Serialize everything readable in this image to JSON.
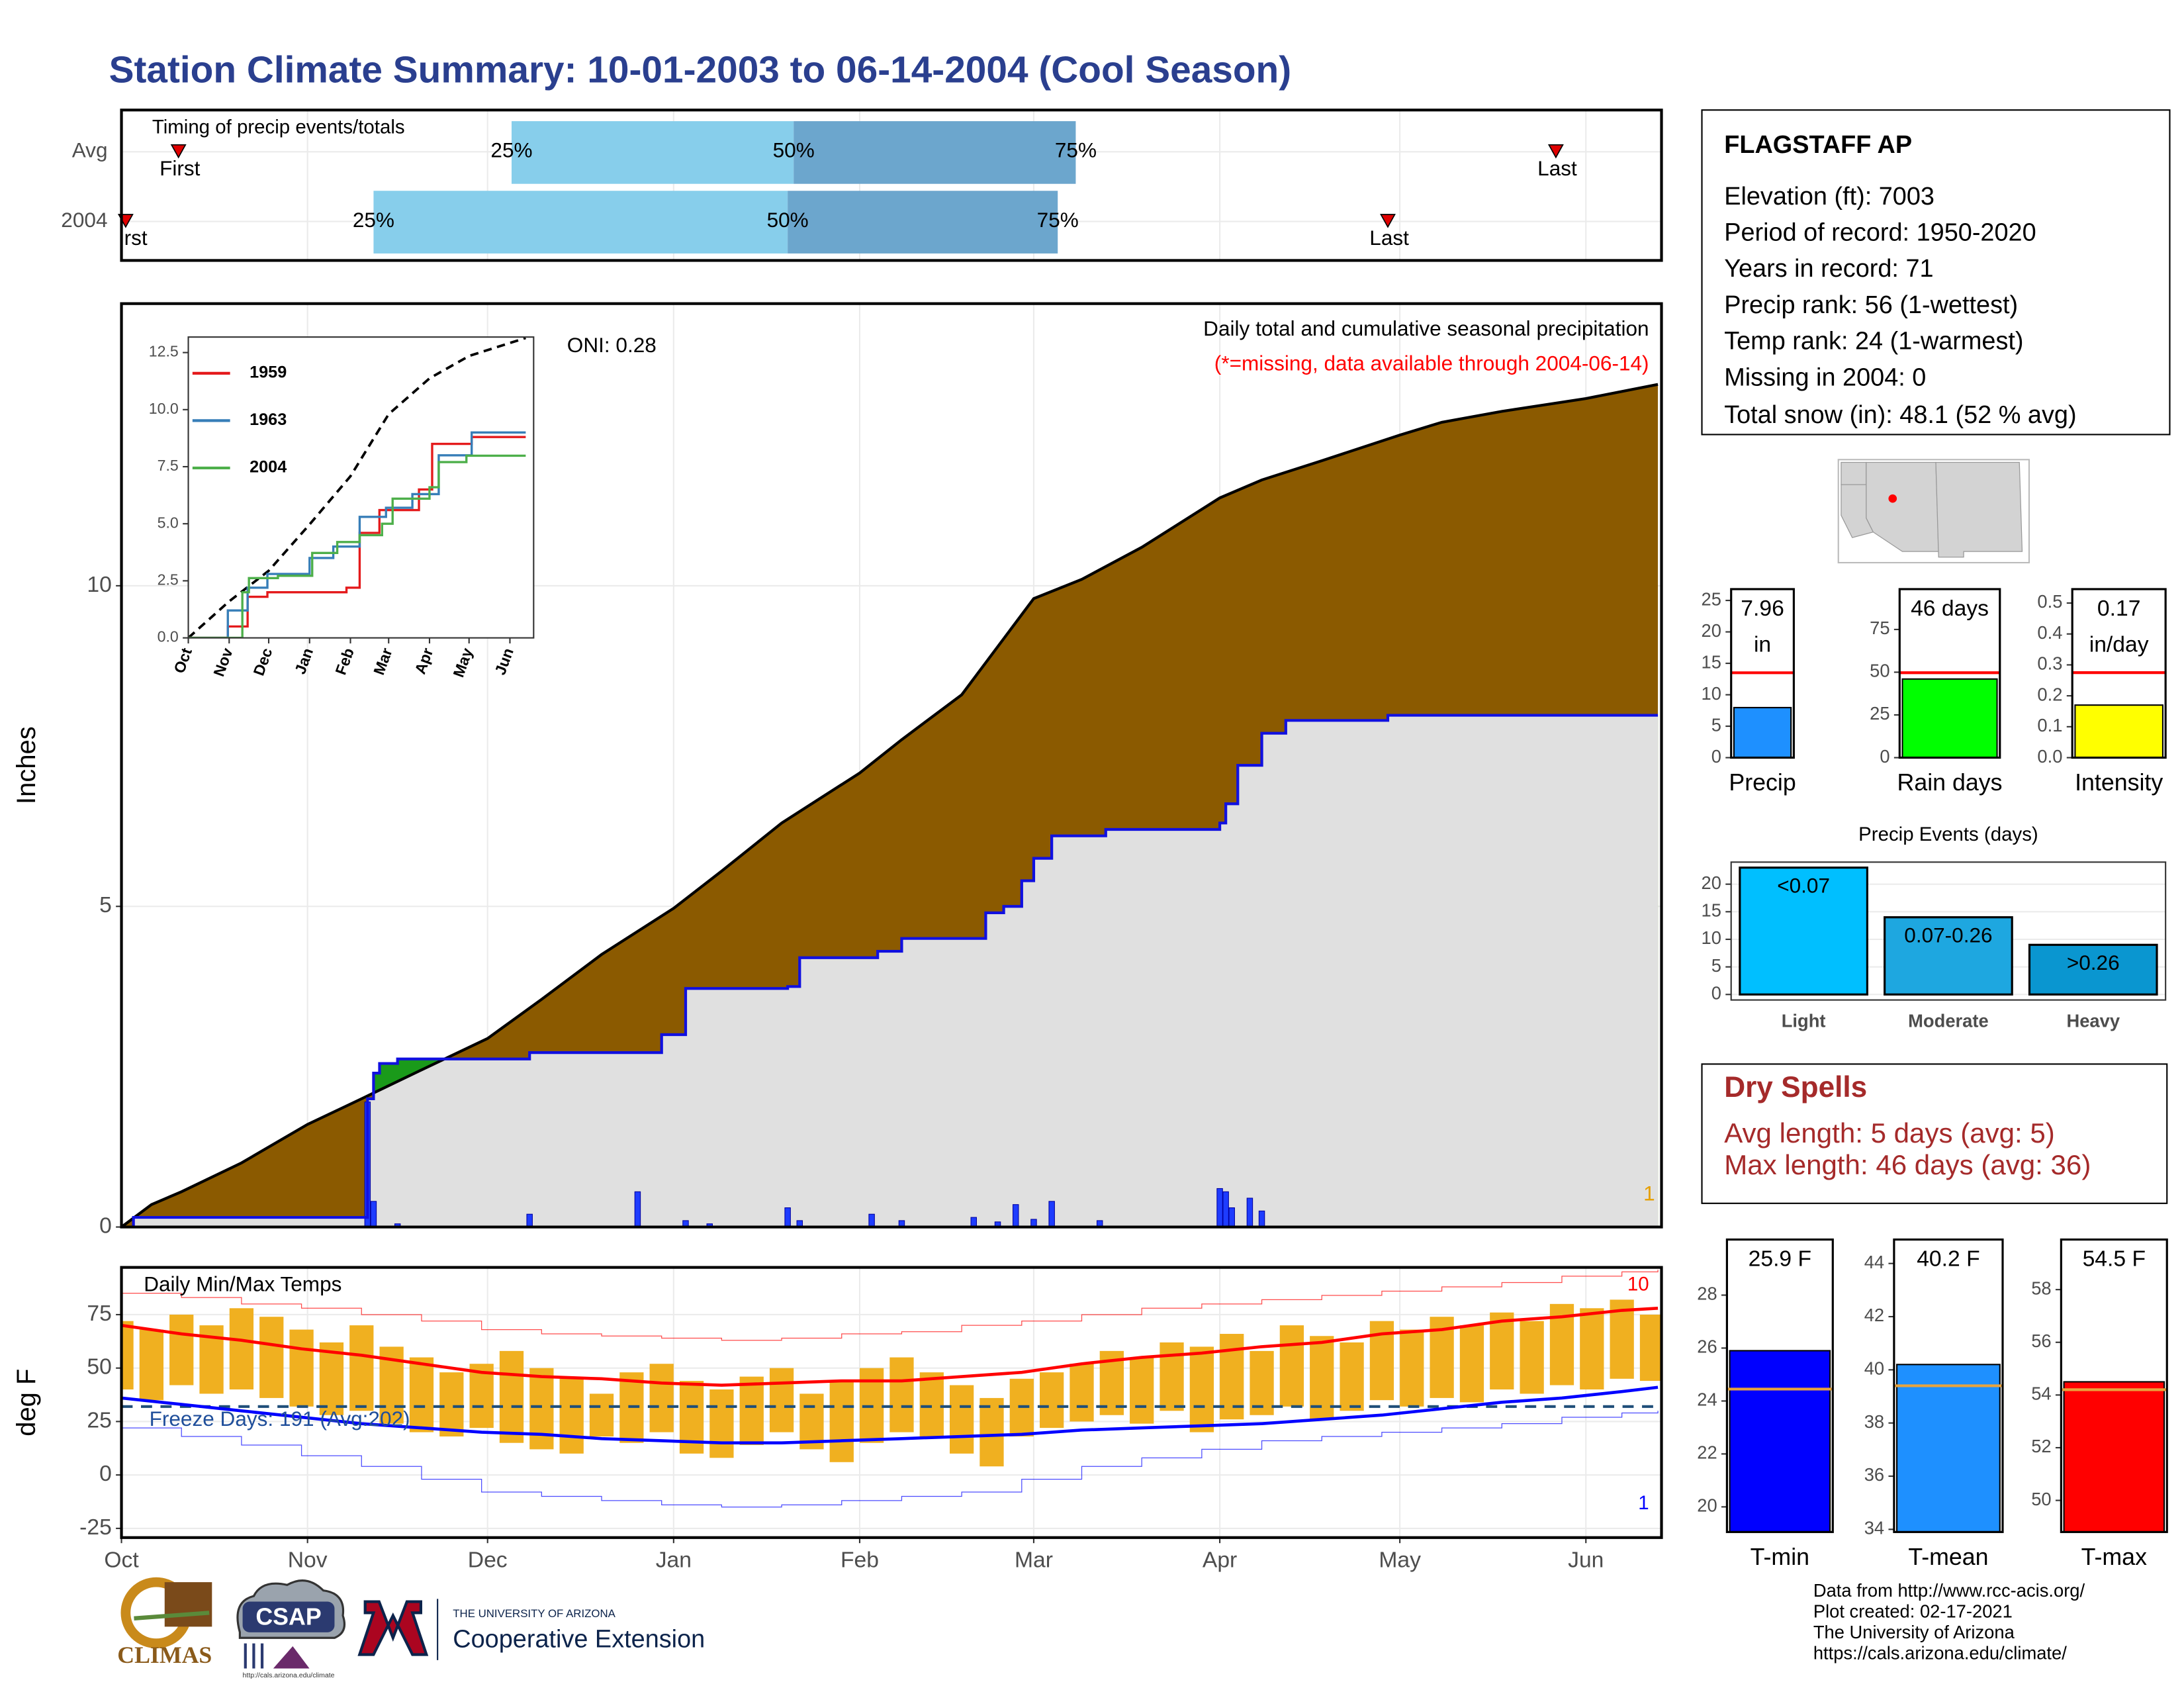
{
  "title": "Station Climate Summary: 10-01-2003 to 06-14-2004 (Cool Season)",
  "chart_data": [
    {
      "type": "timing",
      "title": "Timing of precip events/totals",
      "categories": [
        "Avg",
        "2004"
      ],
      "first": [
        9.5,
        0.7
      ],
      "q25": [
        65,
        42
      ],
      "q50": [
        112,
        111
      ],
      "q75": [
        159,
        156
      ],
      "last": [
        239,
        211
      ],
      "first_label": "First",
      "last_label": "Last",
      "quantile_labels": [
        "25%",
        "50%",
        "75%"
      ],
      "colors": [
        "#87CEEB",
        "#6CA6CD"
      ],
      "marker_color": "#e00000",
      "xlim": [
        0,
        256.6
      ],
      "xticks": [
        0,
        31,
        61,
        92,
        123,
        152,
        183,
        213,
        244
      ],
      "grid": true
    },
    {
      "type": "cumulative",
      "title": "Daily total and cumulative seasonal precipitation",
      "subtitle": "(*=missing, data available through 2004-06-14)",
      "annotation": "ONI: 0.28",
      "corner_count": 1,
      "ylabel": "Inches",
      "series": [
        {
          "color": "#000000",
          "step": false,
          "x": [
            0,
            5,
            10,
            20,
            31,
            40,
            50,
            61,
            70,
            80,
            92,
            100,
            110,
            123,
            130,
            140,
            152,
            160,
            170,
            183,
            190,
            200,
            213,
            220,
            230,
            244,
            256
          ],
          "values": [
            0,
            0.35,
            0.55,
            1.0,
            1.6,
            2.0,
            2.45,
            2.94,
            3.55,
            4.25,
            4.97,
            5.55,
            6.3,
            7.08,
            7.6,
            8.3,
            9.8,
            10.1,
            10.6,
            11.37,
            11.65,
            11.95,
            12.35,
            12.55,
            12.72,
            12.92,
            13.14
          ]
        },
        {
          "color": "#1010e0",
          "step": true,
          "x": [
            0,
            2,
            41,
            42,
            43,
            46,
            61,
            68,
            90,
            94,
            111,
            113,
            126,
            130,
            144,
            147,
            150,
            152,
            155,
            164,
            183,
            184,
            186,
            190,
            194,
            200,
            211,
            256
          ],
          "values": [
            0,
            0.15,
            2.0,
            2.4,
            2.55,
            2.62,
            2.62,
            2.72,
            3.0,
            3.72,
            3.75,
            4.2,
            4.3,
            4.5,
            4.9,
            5.0,
            5.4,
            5.75,
            6.1,
            6.2,
            6.3,
            6.6,
            7.2,
            7.7,
            7.9,
            7.9,
            7.98,
            7.98
          ]
        }
      ],
      "fill_below": "#8B5A00",
      "fill_above": "#1A9A1A",
      "fill_base": "#E0E0E0",
      "daily": {
        "color": "#1E3CFF",
        "x": [
          41,
          42,
          46,
          68,
          86,
          94,
          98,
          111,
          113,
          125,
          130,
          142,
          146,
          149,
          152,
          155,
          163,
          183,
          184,
          185,
          188,
          190
        ],
        "values": [
          1.95,
          0.4,
          0.05,
          0.2,
          0.55,
          0.1,
          0.05,
          0.3,
          0.1,
          0.2,
          0.1,
          0.15,
          0.08,
          0.35,
          0.12,
          0.4,
          0.1,
          0.6,
          0.55,
          0.3,
          0.45,
          0.25
        ]
      },
      "xlim": [
        0,
        256.6
      ],
      "xticks": [
        0,
        31,
        61,
        92,
        123,
        152,
        183,
        213,
        244
      ],
      "ylim": [
        0,
        14.4
      ],
      "yticks": [
        0,
        5,
        10
      ],
      "grid": true
    },
    {
      "type": "line",
      "series": [
        {
          "color": "#000000",
          "dash": true,
          "x": [
            0,
            31,
            61,
            92,
            123,
            152,
            183,
            213,
            244,
            256
          ],
          "values": [
            0,
            1.6,
            2.94,
            4.97,
            7.08,
            9.8,
            11.37,
            12.35,
            12.92,
            13.14
          ]
        },
        {
          "name": "1959",
          "color": "#e41a1c",
          "dash": false,
          "x": [
            0,
            30,
            45,
            60,
            90,
            120,
            130,
            140,
            145,
            165,
            175,
            185,
            215,
            256
          ],
          "values": [
            0,
            0.5,
            1.8,
            2.0,
            2.0,
            2.2,
            4.6,
            4.6,
            5.6,
            5.6,
            6.5,
            8.5,
            8.8,
            8.8
          ]
        },
        {
          "name": "1963",
          "color": "#377eb8",
          "dash": false,
          "x": [
            0,
            30,
            45,
            60,
            92,
            110,
            130,
            150,
            170,
            190,
            215,
            256
          ],
          "values": [
            0,
            1.2,
            2.2,
            2.8,
            3.5,
            4.0,
            5.3,
            5.7,
            6.3,
            8.0,
            9.0,
            9.0
          ]
        },
        {
          "name": "2004",
          "color": "#4daf4a",
          "dash": false,
          "x": [
            0,
            41,
            46,
            68,
            94,
            113,
            130,
            147,
            155,
            183,
            190,
            211,
            256
          ],
          "values": [
            0,
            2.0,
            2.62,
            2.72,
            3.72,
            4.2,
            4.5,
            5.0,
            6.1,
            6.6,
            7.7,
            7.98,
            7.98
          ]
        }
      ],
      "xlim": [
        0,
        262
      ],
      "xticks": [
        {
          "value": 0,
          "label": "Oct"
        },
        {
          "value": 31,
          "label": "Nov"
        },
        {
          "value": 61,
          "label": "Dec"
        },
        {
          "value": 92,
          "label": "Jan"
        },
        {
          "value": 123,
          "label": "Feb"
        },
        {
          "value": 152,
          "label": "Mar"
        },
        {
          "value": 183,
          "label": "Apr"
        },
        {
          "value": 213,
          "label": "May"
        },
        {
          "value": 244,
          "label": "Jun"
        }
      ],
      "ylim": [
        0,
        13.18
      ],
      "yticks": [
        {
          "value": 0,
          "label": "0.0"
        },
        2.5,
        {
          "value": 5,
          "label": "5.0"
        },
        7.5,
        {
          "value": 10,
          "label": "10.0"
        },
        12.5
      ],
      "grid": false
    },
    {
      "type": "temperature",
      "title": "Daily Min/Max Temps",
      "ylabel": "deg F",
      "note": "Freeze Days: 191 (Avg:202)",
      "high_records": 10,
      "low_records": 1,
      "x": [
        0,
        5,
        10,
        15,
        20,
        25,
        30,
        35,
        40,
        45,
        50,
        55,
        60,
        65,
        70,
        75,
        80,
        85,
        90,
        95,
        100,
        105,
        110,
        115,
        120,
        125,
        130,
        135,
        140,
        145,
        150,
        155,
        160,
        165,
        170,
        175,
        180,
        185,
        190,
        195,
        200,
        205,
        210,
        215,
        220,
        225,
        230,
        235,
        240,
        245,
        250,
        255
      ],
      "max": [
        72,
        68,
        75,
        70,
        78,
        74,
        68,
        62,
        70,
        60,
        55,
        48,
        52,
        58,
        50,
        45,
        38,
        48,
        52,
        44,
        40,
        46,
        50,
        38,
        44,
        50,
        55,
        48,
        42,
        36,
        45,
        48,
        52,
        58,
        55,
        62,
        60,
        66,
        58,
        70,
        65,
        62,
        72,
        68,
        74,
        70,
        76,
        72,
        80,
        78,
        82,
        75
      ],
      "min": [
        40,
        35,
        42,
        38,
        40,
        36,
        32,
        28,
        30,
        24,
        20,
        18,
        22,
        15,
        12,
        10,
        18,
        15,
        20,
        10,
        8,
        14,
        20,
        12,
        6,
        15,
        20,
        18,
        10,
        4,
        18,
        22,
        25,
        28,
        24,
        30,
        20,
        26,
        28,
        32,
        26,
        30,
        35,
        32,
        36,
        34,
        40,
        38,
        42,
        40,
        45,
        44
      ],
      "bar_color": "#F0B020",
      "avg_x": [
        0,
        10,
        20,
        30,
        40,
        50,
        60,
        70,
        80,
        90,
        100,
        110,
        120,
        130,
        140,
        150,
        160,
        170,
        180,
        190,
        200,
        210,
        220,
        230,
        240,
        250,
        256
      ],
      "avg_max": [
        70,
        66,
        63,
        59,
        56,
        52,
        48,
        46,
        45,
        43,
        42,
        43,
        44,
        44,
        46,
        48,
        52,
        55,
        57,
        60,
        62,
        66,
        68,
        72,
        74,
        77,
        78
      ],
      "avg_min": [
        36,
        33,
        30,
        27,
        24,
        22,
        20,
        19,
        17,
        16,
        15,
        15,
        16,
        17,
        18,
        19,
        21,
        22,
        23,
        24,
        26,
        28,
        31,
        34,
        36,
        39,
        41
      ],
      "record_max": [
        85,
        83,
        80,
        78,
        75,
        72,
        68,
        66,
        65,
        64,
        63,
        64,
        66,
        67,
        70,
        72,
        75,
        78,
        80,
        82,
        84,
        86,
        88,
        90,
        93,
        95,
        96
      ],
      "record_min": [
        22,
        18,
        14,
        9,
        4,
        -2,
        -8,
        -10,
        -12,
        -14,
        -15,
        -14,
        -12,
        -10,
        -8,
        -2,
        4,
        8,
        12,
        16,
        18,
        20,
        22,
        24,
        27,
        29,
        30
      ],
      "max_color": "#ff0000",
      "min_color": "#0000ff",
      "freeze": 32,
      "freeze_color": "#1f4e79",
      "note_color": "#1f4e9a",
      "xlim": [
        0,
        256.6
      ],
      "xticks": [
        {
          "value": 0,
          "label": "Oct"
        },
        {
          "value": 31,
          "label": "Nov"
        },
        {
          "value": 61,
          "label": "Dec"
        },
        {
          "value": 92,
          "label": "Jan"
        },
        {
          "value": 123,
          "label": "Feb"
        },
        {
          "value": 152,
          "label": "Mar"
        },
        {
          "value": 183,
          "label": "Apr"
        },
        {
          "value": 213,
          "label": "May"
        },
        {
          "value": 244,
          "label": "Jun"
        }
      ],
      "ylim": [
        -29.3,
        97.1
      ],
      "yticks": [
        -25,
        0,
        25,
        50,
        75
      ],
      "grid": true
    },
    {
      "type": "bar",
      "categories": [
        "Precip"
      ],
      "values": [
        7.96
      ],
      "value_labels": [
        "7.96 in"
      ],
      "average": 13.5,
      "average_color": "#ff0000",
      "color": "#1E90FF",
      "ylim": [
        0,
        26.8
      ],
      "yticks": [
        0,
        5,
        10,
        15,
        20,
        25
      ]
    },
    {
      "type": "bar",
      "categories": [
        "Rain days"
      ],
      "values": [
        46
      ],
      "value_labels": [
        "46 days"
      ],
      "average": 49.7,
      "average_color": "#ff0000",
      "color": "#00FF00",
      "ylim": [
        0,
        98.6
      ],
      "yticks": [
        0,
        25,
        50,
        75
      ]
    },
    {
      "type": "bar",
      "categories": [
        "Intensity"
      ],
      "values": [
        0.17
      ],
      "value_labels": [
        "0.17 in/day"
      ],
      "average": 0.275,
      "average_color": "#ff0000",
      "color": "#FFFF00",
      "ylim": [
        0,
        0.545
      ],
      "yticks": [
        {
          "value": 0,
          "label": "0.0"
        },
        0.1,
        0.2,
        0.3,
        0.4,
        0.5
      ]
    },
    {
      "type": "bar",
      "title": "Precip Events (days)",
      "categories": [
        "Light",
        "Moderate",
        "Heavy"
      ],
      "values": [
        23,
        14,
        9
      ],
      "bin_labels": [
        "<0.07",
        "0.07-0.26",
        ">0.26"
      ],
      "colors": [
        "#00BFFF",
        "#1EA7E0",
        "#0A96D0"
      ],
      "ylim": [
        -1,
        24
      ],
      "yticks": [
        0,
        5,
        10,
        15,
        20
      ],
      "grid": true
    },
    {
      "type": "bar",
      "categories": [
        "T-min"
      ],
      "values": [
        25.9
      ],
      "value_labels": [
        "25.9 F"
      ],
      "average": 24.45,
      "average_color": "#E8A33D",
      "color": "#0000FF",
      "ylim": [
        19.05,
        30.1
      ],
      "yticks": [
        20,
        22,
        24,
        26,
        28
      ]
    },
    {
      "type": "bar",
      "categories": [
        "T-mean"
      ],
      "values": [
        40.2
      ],
      "value_labels": [
        "40.2 F"
      ],
      "average": 39.4,
      "average_color": "#E8A33D",
      "color": "#1E90FF",
      "ylim": [
        33.9,
        44.9
      ],
      "yticks": [
        34,
        36,
        38,
        40,
        42,
        44
      ]
    },
    {
      "type": "bar",
      "categories": [
        "T-max"
      ],
      "values": [
        54.5
      ],
      "value_labels": [
        "54.5 F"
      ],
      "average": 54.2,
      "average_color": "#E8A33D",
      "color": "#FF0000",
      "ylim": [
        48.8,
        59.9
      ],
      "yticks": [
        50,
        52,
        54,
        56,
        58
      ]
    }
  ],
  "station": {
    "name": "FLAGSTAFF AP",
    "lines": [
      "Elevation (ft): 7003",
      "Period of record: 1950-2020",
      "Years in record: 71",
      "Precip rank: 56 (1-wettest)",
      "Temp rank: 24 (1-warmest)",
      "Missing in 2004: 0",
      "Total snow (in): 48.1 (52 % avg)"
    ]
  },
  "dry_spells": {
    "title": "Dry Spells",
    "lines": [
      "Avg length: 5 days (avg: 5)",
      "Max length: 46 days (avg: 36)"
    ]
  },
  "footer": {
    "credits": [
      "Data from http://www.rcc-acis.org/",
      "Plot created: 02-17-2021",
      "The University of Arizona",
      "https://cals.arizona.edu/climate/"
    ],
    "logos": {
      "climas": "CLIMAS",
      "csap": "CSAP",
      "csap_url": "http://cals.arizona.edu/climate",
      "university": "THE UNIVERSITY OF ARIZONA",
      "extension": "Cooperative Extension"
    }
  }
}
